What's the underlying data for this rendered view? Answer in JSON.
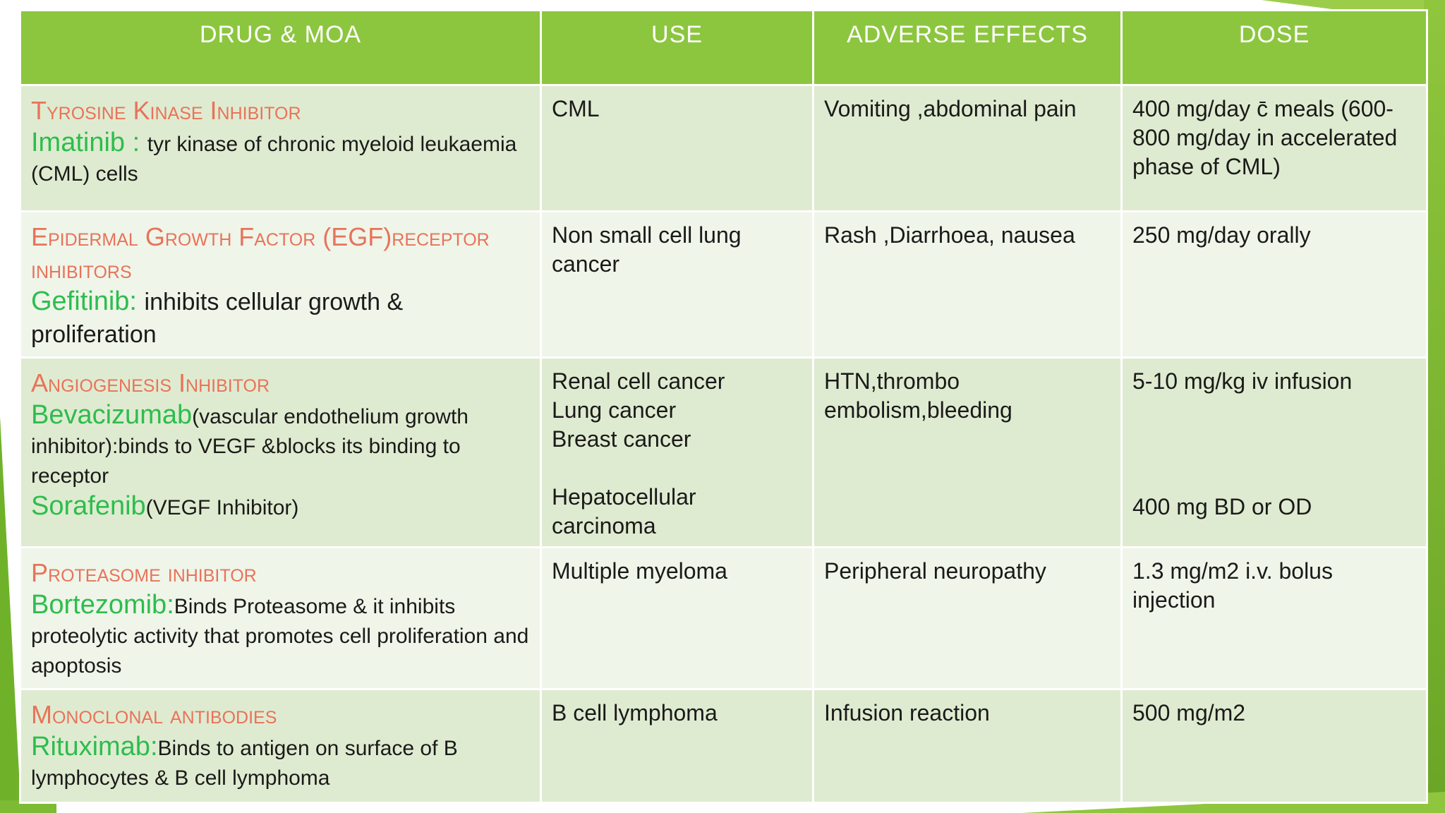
{
  "table": {
    "headers": [
      "DRUG & MOA",
      "USE",
      "ADVERSE EFFECTS",
      "DOSE"
    ],
    "rows": [
      {
        "drug_class": "Tyrosine  Kinase Inhibitor",
        "drug": "Imatinib : ",
        "moa": "tyr kinase of chronic myeloid leukaemia (CML) cells",
        "use": [
          "CML"
        ],
        "adverse": "Vomiting ,abdominal pain",
        "dose": [
          "400 mg/day c̄ meals (600-800 mg/day in accelerated phase of CML)"
        ]
      },
      {
        "drug_class": "Epidermal Growth Factor (EGF)receptor inhibitors",
        "drug": "Gefitinib: ",
        "moa": "inhibits  cellular growth & proliferation",
        "use": [
          "Non small cell lung cancer"
        ],
        "adverse": "Rash ,Diarrhoea, nausea",
        "dose": [
          "250 mg/day orally"
        ]
      },
      {
        "drug_class": "Angiogenesis Inhibitor",
        "drug": "Bevacizumab",
        "moa": "(vascular endothelium growth inhibitor):binds to VEGF &blocks its binding to receptor",
        "drug2": "Sorafenib",
        "moa2": "(VEGF Inhibitor)",
        "use": [
          "Renal cell cancer",
          "Lung cancer",
          "Breast cancer",
          "Hepatocellular carcinoma"
        ],
        "adverse": "HTN,thrombo embolism,bleeding",
        "dose": [
          "5-10 mg/kg iv infusion",
          "400 mg BD or OD"
        ]
      },
      {
        "drug_class": "Proteasome inhibitor",
        "drug": "Bortezomib:",
        "moa": "Binds Proteasome & it inhibits proteolytic activity that promotes cell proliferation and apoptosis",
        "use": [
          "Multiple myeloma"
        ],
        "adverse": "Peripheral neuropathy",
        "dose": [
          "1.3 mg/m2 i.v. bolus injection"
        ]
      },
      {
        "drug_class": "Monoclonal antibodies",
        "drug": "Rituximab:",
        "moa": "Binds to antigen on surface of B lymphocytes & B cell lymphoma",
        "use": [
          "B cell lymphoma"
        ],
        "adverse": "Infusion reaction",
        "dose": [
          "500 mg/m2"
        ]
      }
    ]
  }
}
